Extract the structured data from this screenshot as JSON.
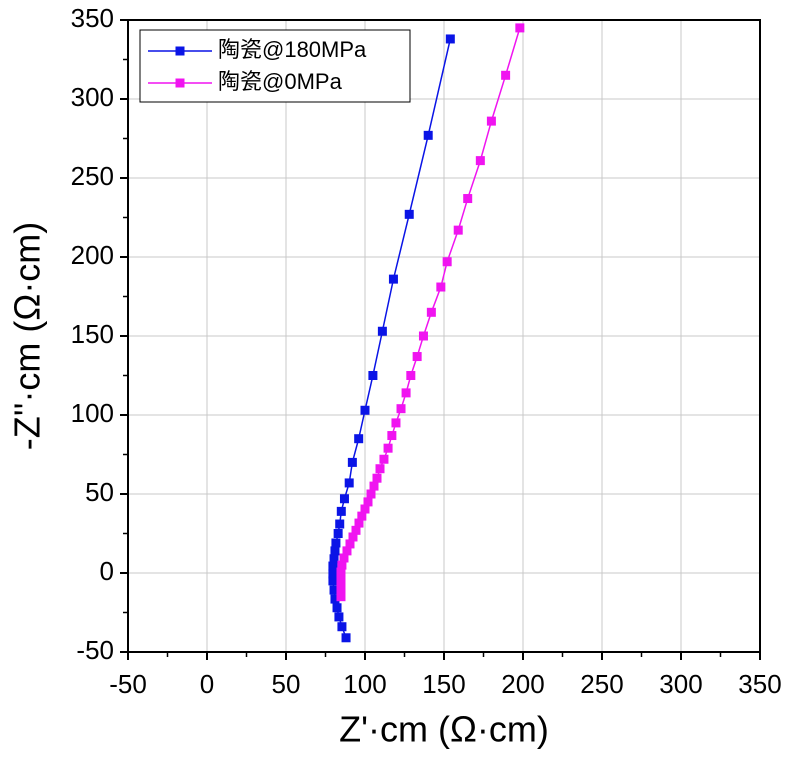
{
  "chart_data": {
    "type": "line",
    "markers": "square",
    "xlabel": "Z'·cm (Ω·cm)",
    "ylabel": "-Z''·cm (Ω·cm)",
    "xlim": [
      -50,
      350
    ],
    "ylim": [
      -50,
      350
    ],
    "xticks": [
      -50,
      0,
      50,
      100,
      150,
      200,
      250,
      300,
      350
    ],
    "yticks": [
      -50,
      0,
      50,
      100,
      150,
      200,
      250,
      300,
      350
    ],
    "grid": true,
    "legend": "upper left",
    "series": [
      {
        "name": "陶瓷@180MPa",
        "color": "#0a14e6",
        "x": [
          154,
          140,
          128,
          118,
          111,
          105,
          100,
          96,
          92,
          90,
          87,
          85,
          84,
          83,
          81.6,
          81,
          80.4,
          79.7,
          79.7,
          79.7,
          80.4,
          81,
          82.3,
          83.5,
          85.4,
          88
        ],
        "values": [
          338,
          277,
          227,
          186,
          153,
          125,
          103,
          85,
          70,
          57,
          47,
          39,
          31,
          25,
          19,
          14,
          9,
          4.4,
          -0.6,
          -5,
          -10.8,
          -16.5,
          -22,
          -27.8,
          -34,
          -41
        ]
      },
      {
        "name": "陶瓷@0MPa",
        "color": "#f014f0",
        "x": [
          198,
          189,
          180,
          173,
          165,
          159,
          152,
          148,
          142,
          137,
          133,
          129,
          126,
          122.8,
          119.6,
          117,
          114.6,
          112,
          109.5,
          107.6,
          105.7,
          103.8,
          101.9,
          100,
          98,
          96.2,
          94.3,
          92.4,
          90.5,
          88.6,
          86.7,
          85.4,
          84.8,
          84.8,
          84.8,
          84.8
        ],
        "values": [
          345,
          315,
          286,
          261,
          237,
          217,
          197,
          181,
          165,
          150,
          137,
          125,
          114,
          104,
          95,
          87,
          79,
          72,
          66,
          60,
          55,
          50,
          45,
          40.5,
          36,
          31.6,
          27,
          22.8,
          18.4,
          14,
          9.5,
          5,
          0.6,
          -4.4,
          -9.5,
          -15
        ]
      }
    ]
  }
}
